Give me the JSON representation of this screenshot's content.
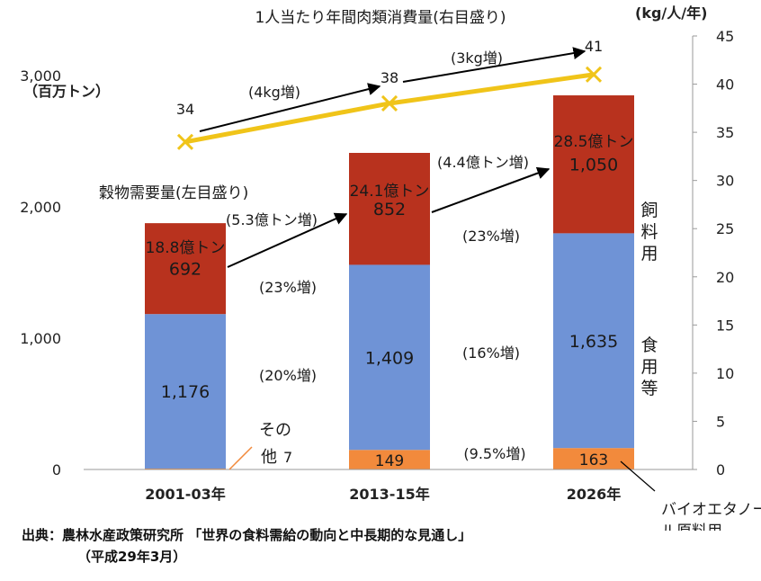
{
  "chart_data": {
    "type": "bar",
    "stacked": true,
    "categories": [
      "2001-03年",
      "2013-15年",
      "2026年"
    ],
    "series": [
      {
        "name": "その他",
        "values": [
          7,
          149,
          163
        ],
        "color": "#f28a3c"
      },
      {
        "name": "食用等",
        "values": [
          1176,
          1409,
          1635
        ],
        "color": "#6f93d6"
      },
      {
        "name": "飼料用",
        "values": [
          692,
          852,
          1050
        ],
        "color": "#b8321e"
      }
    ],
    "other_labels": [
      "7",
      "149",
      "163"
    ],
    "food_labels": [
      "1,176",
      "1,409",
      "1,635"
    ],
    "feed_labels": [
      "692",
      "852",
      "1,050"
    ],
    "totals": [
      "18.8億トン",
      "24.1億トン",
      "28.5億トン"
    ],
    "left_axis": {
      "unit_label": "（百万トン）",
      "ylim": [
        0,
        3300
      ],
      "ticks": [
        0,
        1000,
        2000,
        3000
      ],
      "tick_labels": [
        "0",
        "1,000",
        "2,000",
        "3,000"
      ]
    },
    "right_axis": {
      "unit_label": "(kg/人/年)",
      "ylim": [
        0,
        45
      ],
      "ticks": [
        0,
        5,
        10,
        15,
        20,
        25,
        30,
        35,
        40,
        45
      ],
      "tick_labels": [
        "0",
        "5",
        "10",
        "15",
        "20",
        "25",
        "30",
        "35",
        "40",
        "45"
      ]
    },
    "grain_title": "穀物需要量(左目盛り)",
    "meat_series": {
      "title": "1人当たり年間肉類消費量(右目盛り)",
      "values": [
        34,
        38,
        41
      ],
      "labels": [
        "34",
        "38",
        "41"
      ],
      "color": "#f0c419"
    },
    "meat_increases": [
      "(4kg増)",
      "(3kg増)"
    ],
    "total_increases": [
      "(5.3億トン増)",
      "(4.4億トン増)"
    ],
    "feed_growth": [
      "(23%増)",
      "(23%増)"
    ],
    "food_growth": [
      "(20%増)",
      "(16%増)"
    ],
    "other_growth": "(9.5%増)",
    "side_labels": {
      "feed": [
        "飼",
        "料",
        "用"
      ],
      "food": [
        "食",
        "用",
        "等"
      ],
      "other": [
        "その",
        "他"
      ],
      "bioethanol": [
        "バイオエタノー",
        "ル原料用"
      ]
    }
  },
  "source": {
    "line1": "出典：農林水産政策研究所 「世界の食料需給の動向と中長期的な見通し」",
    "line2": "（平成29年3月）"
  }
}
